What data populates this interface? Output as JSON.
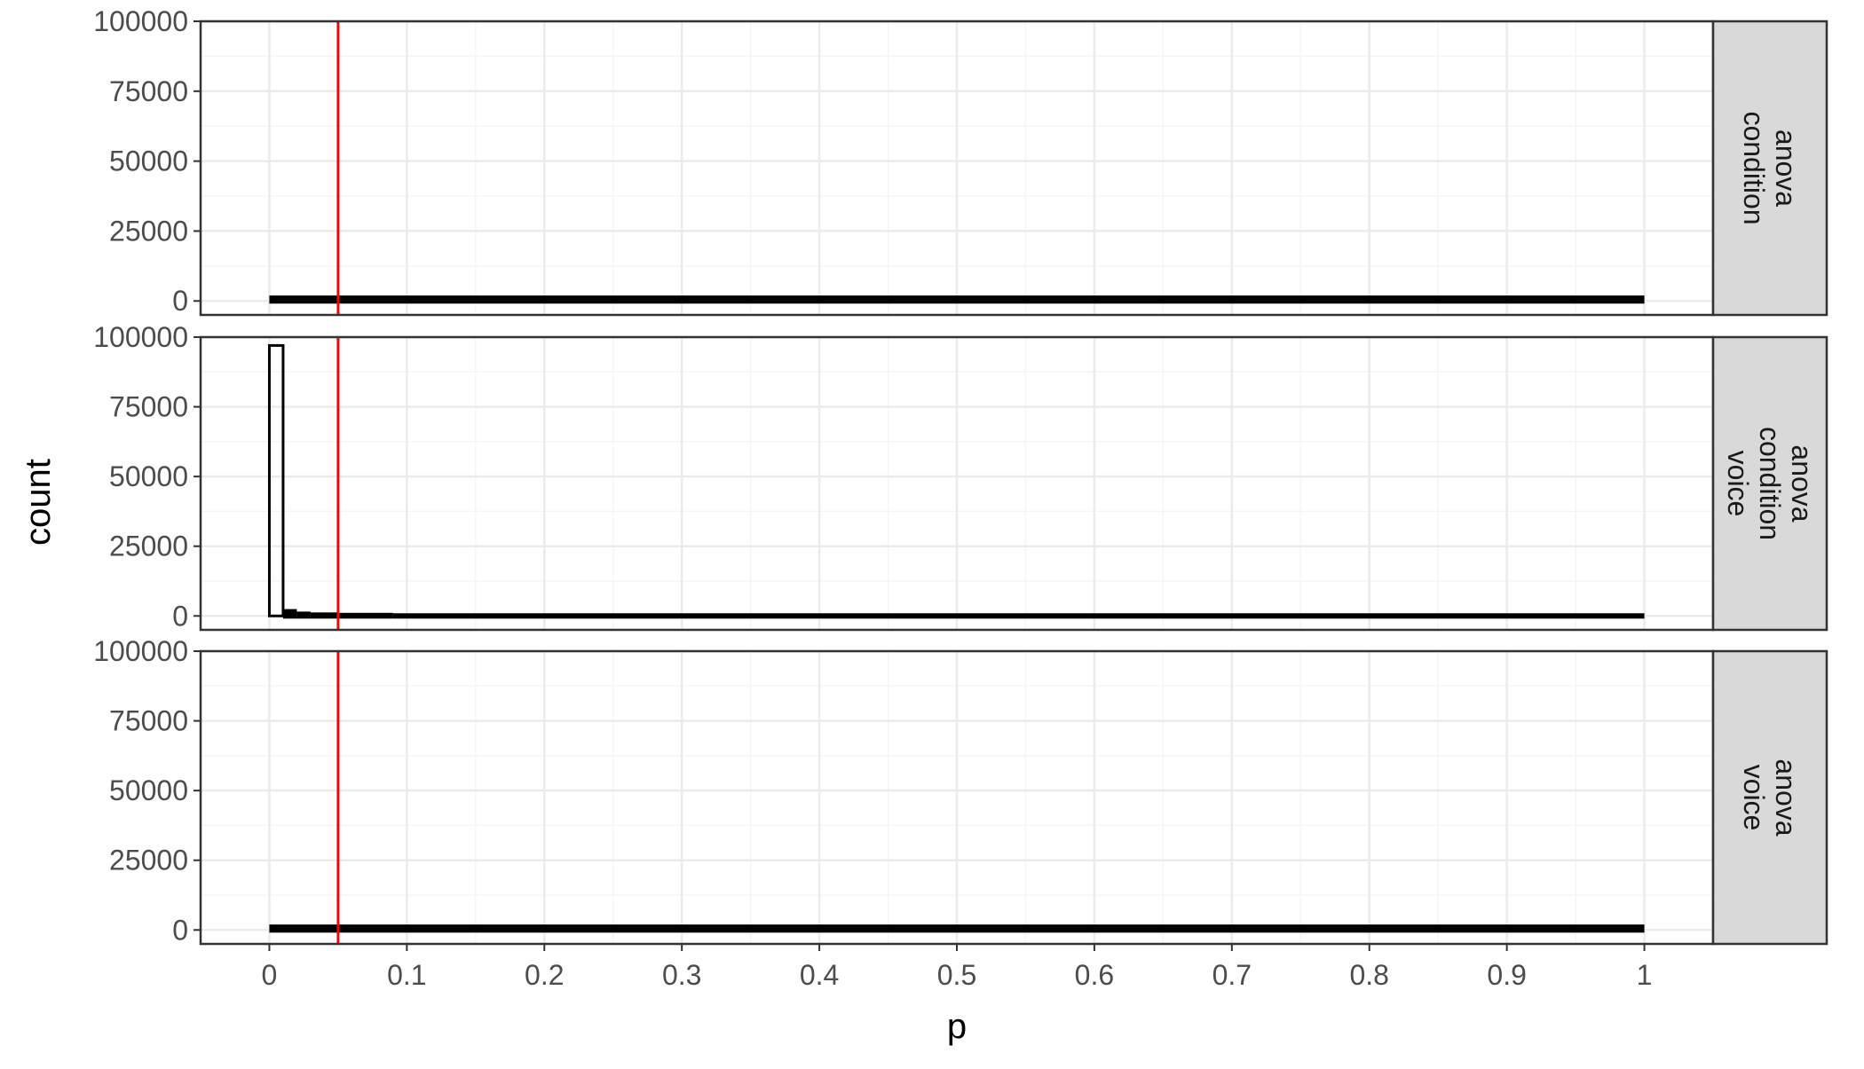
{
  "chart_data": {
    "type": "histogram",
    "xlabel": "p",
    "ylabel": "count",
    "xlim": [
      -0.05,
      1.05
    ],
    "ylim": [
      -5000,
      100000
    ],
    "x_ticks": [
      "0",
      "0.1",
      "0.2",
      "0.3",
      "0.4",
      "0.5",
      "0.6",
      "0.7",
      "0.8",
      "0.9",
      "1"
    ],
    "x_tick_values": [
      0,
      0.1,
      0.2,
      0.3,
      0.4,
      0.5,
      0.6,
      0.7,
      0.8,
      0.9,
      1
    ],
    "y_ticks": [
      "100000",
      "75000",
      "50000",
      "25000",
      "0"
    ],
    "y_tick_values": [
      100000,
      75000,
      50000,
      25000,
      0
    ],
    "reference_line": {
      "x": 0.05,
      "color": "#ff0000"
    },
    "bin_width": 0.01,
    "grid": true,
    "facets": [
      {
        "strip": [
          "anova",
          "condition"
        ],
        "series": [
          {
            "x_start": 0.0,
            "x_end": 1.0,
            "count": 1000
          }
        ]
      },
      {
        "strip": [
          "anova",
          "condition",
          "voice"
        ],
        "series": [
          {
            "x_start": 0.0,
            "x_end": 0.01,
            "count": 97000
          },
          {
            "x_start": 0.01,
            "x_end": 0.02,
            "count": 1500
          },
          {
            "x_start": 0.02,
            "x_end": 0.03,
            "count": 600
          },
          {
            "x_start": 0.03,
            "x_end": 0.05,
            "count": 300
          },
          {
            "x_start": 0.05,
            "x_end": 0.09,
            "count": 150
          },
          {
            "x_start": 0.09,
            "x_end": 1.0,
            "count": 0
          }
        ]
      },
      {
        "strip": [
          "anova",
          "voice"
        ],
        "series": [
          {
            "x_start": 0.0,
            "x_end": 1.0,
            "count": 1000
          }
        ]
      }
    ]
  },
  "colors": {
    "panel_border": "#333333",
    "grid_major": "#ebebeb",
    "grid_minor": "#f5f5f5",
    "strip_fill": "#d9d9d9",
    "bars": "#000000",
    "reference": "#ff0000"
  }
}
